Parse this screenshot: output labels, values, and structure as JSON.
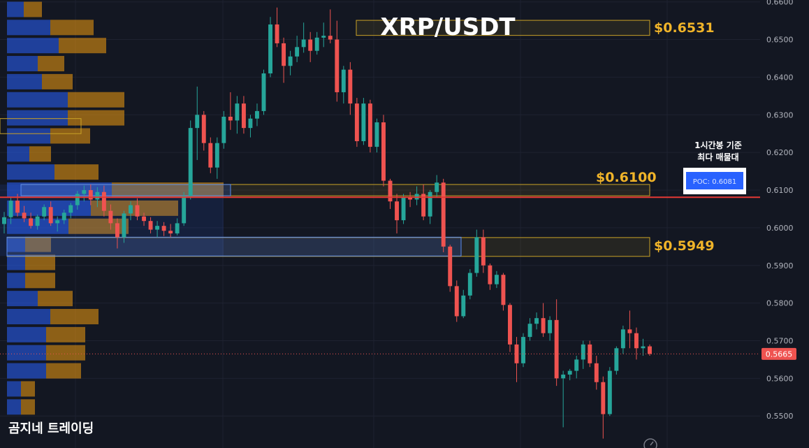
{
  "chart_data": {
    "type": "candlestick",
    "title": "XRP/USDT",
    "y_ticks": [
      "0.6600",
      "0.6500",
      "0.6400",
      "0.6300",
      "0.6200",
      "0.6100",
      "0.6000",
      "0.5900",
      "0.5800",
      "0.5700",
      "0.5600",
      "0.5500"
    ],
    "ylim": [
      0.5415,
      0.6605
    ],
    "current_price": "0.5665",
    "poc": {
      "label": "POC: 0.6081",
      "value": 0.6081,
      "note_line1": "1시간봉 기준",
      "note_line2": "최다 매물대"
    },
    "levels": [
      {
        "label": "$0.6531",
        "value": 0.6531
      },
      {
        "label": "$0.6100",
        "value": 0.61
      },
      {
        "label": "$0.5949",
        "value": 0.5949
      }
    ],
    "watermark": "곰지네 트레이딩",
    "colors": {
      "up": "#26a69a",
      "down": "#ef5350",
      "poc_line": "#e53935",
      "level_box": "#c9a227",
      "vp_blue": "#2962ff",
      "vp_orange": "#f29d0f"
    },
    "candles": [
      [
        0.601,
        0.6042,
        0.5985,
        0.6028
      ],
      [
        0.6028,
        0.608,
        0.601,
        0.6072
      ],
      [
        0.6072,
        0.609,
        0.603,
        0.604
      ],
      [
        0.604,
        0.6058,
        0.6015,
        0.6025
      ],
      [
        0.6025,
        0.604,
        0.5998,
        0.6005
      ],
      [
        0.6005,
        0.6035,
        0.5995,
        0.603
      ],
      [
        0.603,
        0.6062,
        0.602,
        0.6055
      ],
      [
        0.6055,
        0.607,
        0.6005,
        0.6012
      ],
      [
        0.6012,
        0.603,
        0.599,
        0.602
      ],
      [
        0.602,
        0.6048,
        0.601,
        0.604
      ],
      [
        0.604,
        0.6066,
        0.6025,
        0.606
      ],
      [
        0.606,
        0.6098,
        0.6048,
        0.609
      ],
      [
        0.609,
        0.6112,
        0.607,
        0.61
      ],
      [
        0.61,
        0.6115,
        0.606,
        0.6075
      ],
      [
        0.6075,
        0.6108,
        0.6055,
        0.6095
      ],
      [
        0.6095,
        0.6112,
        0.603,
        0.6045
      ],
      [
        0.6045,
        0.6062,
        0.5995,
        0.6012
      ],
      [
        0.6012,
        0.6025,
        0.5945,
        0.5975
      ],
      [
        0.5975,
        0.6045,
        0.596,
        0.6038
      ],
      [
        0.6038,
        0.607,
        0.602,
        0.606
      ],
      [
        0.606,
        0.6078,
        0.602,
        0.603
      ],
      [
        0.603,
        0.604,
        0.6005,
        0.6018
      ],
      [
        0.6018,
        0.6028,
        0.5985,
        0.5995
      ],
      [
        0.5995,
        0.6018,
        0.5975,
        0.6005
      ],
      [
        0.6005,
        0.6015,
        0.5978,
        0.5992
      ],
      [
        0.5992,
        0.601,
        0.5975,
        0.5985
      ],
      [
        0.5985,
        0.6025,
        0.598,
        0.6012
      ],
      [
        0.6012,
        0.6095,
        0.6005,
        0.6085
      ],
      [
        0.6085,
        0.6285,
        0.6075,
        0.6265
      ],
      [
        0.6265,
        0.6375,
        0.618,
        0.63
      ],
      [
        0.63,
        0.631,
        0.6205,
        0.6225
      ],
      [
        0.6225,
        0.624,
        0.6145,
        0.616
      ],
      [
        0.616,
        0.624,
        0.613,
        0.6225
      ],
      [
        0.6225,
        0.631,
        0.621,
        0.6295
      ],
      [
        0.6295,
        0.636,
        0.626,
        0.6285
      ],
      [
        0.6285,
        0.635,
        0.625,
        0.633
      ],
      [
        0.633,
        0.635,
        0.625,
        0.6265
      ],
      [
        0.6265,
        0.63,
        0.624,
        0.629
      ],
      [
        0.629,
        0.633,
        0.627,
        0.631
      ],
      [
        0.631,
        0.642,
        0.63,
        0.641
      ],
      [
        0.641,
        0.656,
        0.64,
        0.654
      ],
      [
        0.654,
        0.6585,
        0.648,
        0.649
      ],
      [
        0.649,
        0.6505,
        0.6385,
        0.643
      ],
      [
        0.643,
        0.647,
        0.6405,
        0.6455
      ],
      [
        0.6455,
        0.651,
        0.644,
        0.648
      ],
      [
        0.648,
        0.6545,
        0.6465,
        0.65
      ],
      [
        0.65,
        0.652,
        0.644,
        0.647
      ],
      [
        0.647,
        0.652,
        0.646,
        0.6505
      ],
      [
        0.6505,
        0.6545,
        0.648,
        0.651
      ],
      [
        0.651,
        0.658,
        0.649,
        0.65
      ],
      [
        0.65,
        0.655,
        0.6335,
        0.636
      ],
      [
        0.636,
        0.643,
        0.633,
        0.642
      ],
      [
        0.642,
        0.644,
        0.63,
        0.633
      ],
      [
        0.633,
        0.6345,
        0.6215,
        0.623
      ],
      [
        0.623,
        0.6345,
        0.622,
        0.633
      ],
      [
        0.633,
        0.634,
        0.62,
        0.6215
      ],
      [
        0.6215,
        0.629,
        0.62,
        0.628
      ],
      [
        0.628,
        0.63,
        0.611,
        0.6125
      ],
      [
        0.6125,
        0.613,
        0.605,
        0.607
      ],
      [
        0.607,
        0.609,
        0.5985,
        0.602
      ],
      [
        0.602,
        0.609,
        0.601,
        0.608
      ],
      [
        0.608,
        0.6095,
        0.6055,
        0.6075
      ],
      [
        0.6075,
        0.611,
        0.606,
        0.609
      ],
      [
        0.609,
        0.6115,
        0.602,
        0.603
      ],
      [
        0.603,
        0.61,
        0.601,
        0.6095
      ],
      [
        0.6095,
        0.614,
        0.608,
        0.612
      ],
      [
        0.612,
        0.613,
        0.5935,
        0.595
      ],
      [
        0.595,
        0.5955,
        0.583,
        0.5845
      ],
      [
        0.5845,
        0.586,
        0.575,
        0.5765
      ],
      [
        0.5765,
        0.5835,
        0.576,
        0.582
      ],
      [
        0.582,
        0.589,
        0.581,
        0.588
      ],
      [
        0.588,
        0.5995,
        0.587,
        0.5975
      ],
      [
        0.5975,
        0.5995,
        0.588,
        0.59
      ],
      [
        0.59,
        0.5905,
        0.5835,
        0.585
      ],
      [
        0.585,
        0.5885,
        0.584,
        0.5875
      ],
      [
        0.5875,
        0.588,
        0.578,
        0.5795
      ],
      [
        0.5795,
        0.58,
        0.567,
        0.569
      ],
      [
        0.569,
        0.571,
        0.559,
        0.564
      ],
      [
        0.564,
        0.572,
        0.563,
        0.571
      ],
      [
        0.571,
        0.576,
        0.57,
        0.5745
      ],
      [
        0.5745,
        0.5775,
        0.573,
        0.576
      ],
      [
        0.576,
        0.58,
        0.571,
        0.572
      ],
      [
        0.572,
        0.5765,
        0.57,
        0.5755
      ],
      [
        0.5755,
        0.581,
        0.558,
        0.56
      ],
      [
        0.56,
        0.562,
        0.547,
        0.561
      ],
      [
        0.561,
        0.5625,
        0.5595,
        0.562
      ],
      [
        0.562,
        0.566,
        0.56,
        0.565
      ],
      [
        0.565,
        0.57,
        0.5625,
        0.569
      ],
      [
        0.569,
        0.57,
        0.563,
        0.564
      ],
      [
        0.564,
        0.566,
        0.557,
        0.559
      ],
      [
        0.559,
        0.5605,
        0.544,
        0.5505
      ],
      [
        0.5505,
        0.563,
        0.55,
        0.562
      ],
      [
        0.562,
        0.5685,
        0.561,
        0.568
      ],
      [
        0.568,
        0.574,
        0.5665,
        0.573
      ],
      [
        0.573,
        0.578,
        0.568,
        0.572
      ],
      [
        0.572,
        0.5735,
        0.565,
        0.568
      ],
      [
        0.568,
        0.5705,
        0.566,
        0.5685
      ],
      [
        0.5685,
        0.569,
        0.566,
        0.5665
      ]
    ],
    "volume_profile": [
      {
        "price": 0.658,
        "buy": 24,
        "sell": 26
      },
      {
        "price": 0.6532,
        "buy": 62,
        "sell": 62
      },
      {
        "price": 0.6484,
        "buy": 74,
        "sell": 68
      },
      {
        "price": 0.6436,
        "buy": 44,
        "sell": 38
      },
      {
        "price": 0.6388,
        "buy": 50,
        "sell": 44
      },
      {
        "price": 0.634,
        "buy": 87,
        "sell": 81
      },
      {
        "price": 0.6292,
        "buy": 87,
        "sell": 81
      },
      {
        "price": 0.6244,
        "buy": 62,
        "sell": 57
      },
      {
        "price": 0.6196,
        "buy": 32,
        "sell": 31
      },
      {
        "price": 0.6148,
        "buy": 68,
        "sell": 63
      },
      {
        "price": 0.61,
        "buy": 150,
        "sell": 160
      },
      {
        "price": 0.6052,
        "buy": 120,
        "sell": 125
      },
      {
        "price": 0.6004,
        "buy": 88,
        "sell": 86
      },
      {
        "price": 0.5956,
        "buy": 26,
        "sell": 37
      },
      {
        "price": 0.5908,
        "buy": 26,
        "sell": 43
      },
      {
        "price": 0.586,
        "buy": 26,
        "sell": 43
      },
      {
        "price": 0.5812,
        "buy": 44,
        "sell": 50
      },
      {
        "price": 0.5764,
        "buy": 62,
        "sell": 69
      },
      {
        "price": 0.5716,
        "buy": 56,
        "sell": 56
      },
      {
        "price": 0.5668,
        "buy": 56,
        "sell": 56
      },
      {
        "price": 0.562,
        "buy": 56,
        "sell": 50
      },
      {
        "price": 0.5572,
        "buy": 20,
        "sell": 20
      },
      {
        "price": 0.5524,
        "buy": 20,
        "sell": 20
      }
    ]
  }
}
